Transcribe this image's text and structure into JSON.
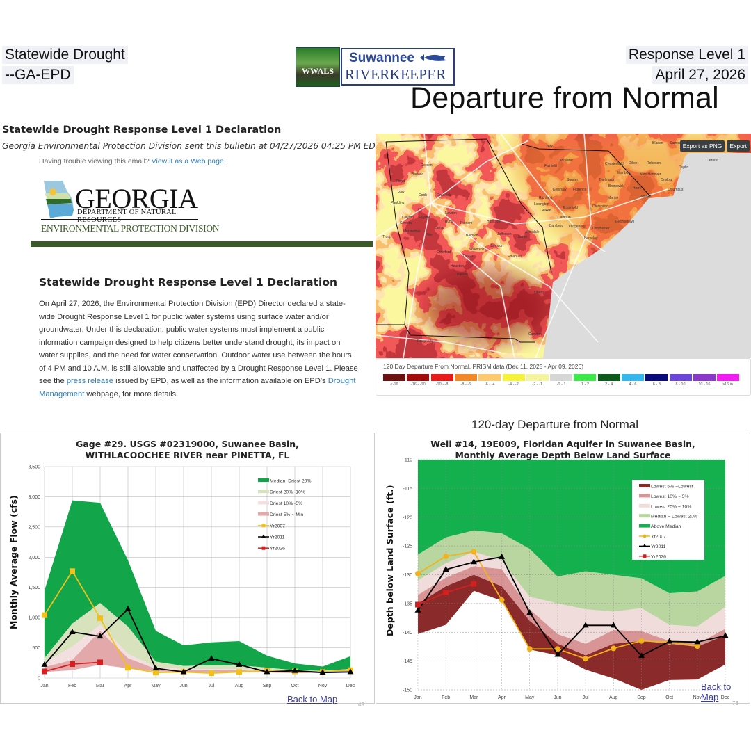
{
  "header": {
    "left_line1": "Statewide Drought",
    "left_line2": "--GA-EPD",
    "right_line1": "Response Level 1",
    "right_line2": "April 27, 2026",
    "big_title": "Departure from Normal",
    "logo_wwals": "WWALS",
    "logo_riverkeeper_1": "Suwannee",
    "logo_riverkeeper_2": "RIVERKEEPER"
  },
  "email": {
    "title": "Statewide Drought Response Level 1 Declaration",
    "subtitle": "Georgia Environmental Protection Division sent this bulletin at 04/27/2026 04:25 PM EDT",
    "trouble_text": "Having trouble viewing this email?",
    "trouble_link": "View it as a Web page.",
    "logo": {
      "word": "GEORGIA",
      "dnr": "DEPARTMENT OF NATURAL RESOURCES",
      "epd": "ENVIRONMENTAL PROTECTION DIVISION"
    },
    "heading": "Statewide Drought Response Level 1 Declaration",
    "body_1": "On April 27, 2026, the Environmental Protection Division (EPD) Director declared a state-wide Drought Response Level 1 for public water systems using surface water and/or groundwater.  Under this declaration, public water systems must implement a public information campaign designed to help citizens better understand drought, its impact on water supplies, and the need for water conservation.  Outdoor water use between the hours of 4 PM and 10 A.M. is still allowable and unaffected by a Drought Response Level 1. Please see the ",
    "link_press": "press release",
    "body_2": " issued by EPD, as well as the information available on EPD's ",
    "link_drought": "Drought Management",
    "body_3": " webpage, for more details.",
    "accent_color": "#3a5a28"
  },
  "map": {
    "export_png": "Export as PNG",
    "export": "Export",
    "legend_caption": "120 Day Departure From Normal, PRISM data (Dec 11, 2025 - Apr 09, 2026)",
    "legend": [
      {
        "label": "<-16",
        "color": "#6d1010"
      },
      {
        "label": "-16 - -10",
        "color": "#a10c0c"
      },
      {
        "label": "-10 - -8",
        "color": "#e81b1b"
      },
      {
        "label": "-8 - -6",
        "color": "#f0882a"
      },
      {
        "label": "-6 - -4",
        "color": "#fcc870"
      },
      {
        "label": "-4 - -2",
        "color": "#f5f23c"
      },
      {
        "label": "-2 - -1",
        "color": "#f4f3a0"
      },
      {
        "label": "-1 - 1",
        "color": "#d7d7d7"
      },
      {
        "label": "1 - 2",
        "color": "#3ee84a"
      },
      {
        "label": "2 - 4",
        "color": "#0d5a1c"
      },
      {
        "label": "4 - 6",
        "color": "#36b6ea"
      },
      {
        "label": "6 - 8",
        "color": "#0a0a78"
      },
      {
        "label": "8 - 10",
        "color": "#6a45d6"
      },
      {
        "label": "10 - 16",
        "color": "#8a38c8"
      },
      {
        "label": ">16 in.",
        "color": "#f01cf0"
      }
    ],
    "places": [
      "Gordon",
      "Bartow",
      "Floyd",
      "Polk",
      "Cobb",
      "Gwinnett",
      "Paulding",
      "Clayton",
      "Coweta",
      "Fayette",
      "Newton",
      "Troup",
      "Meriwether",
      "Butts",
      "Putnam",
      "Lamar",
      "Pike",
      "Baldwin",
      "Hancock",
      "Jefferson",
      "Burke",
      "Johnson",
      "Crawford",
      "Twiggs",
      "Wilkinson",
      "Houston",
      "Pulaski",
      "Emanuel",
      "Liberty",
      "Camden",
      "Dougherty",
      "York",
      "Lancaster",
      "Fairfield",
      "Chesterfield",
      "Marlboro",
      "Dillon",
      "Robeson",
      "Bladen",
      "Sampson",
      "Duplin",
      "Onslow",
      "Pender",
      "Columbus",
      "New Hanover",
      "Brunswick",
      "Horry",
      "Marion",
      "Darlington",
      "Florence",
      "Sumter",
      "Kershaw",
      "Richland",
      "Lexington",
      "Aiken",
      "Edgefield",
      "Calhoun",
      "Orangeburg",
      "Bamberg",
      "Dorchester",
      "Berkeley",
      "Georgetown",
      "Clarendon",
      "Allendale",
      "Carteret"
    ]
  },
  "section_title": "120-day Departure from Normal",
  "chart_data": [
    {
      "type": "area",
      "title_line1": "Gage #29. USGS #02319000, Suwanee Basin,",
      "title_line2": "WITHLACOOCHEE RIVER near PINETTA, FL",
      "xlabel": "",
      "ylabel": "Monthly Average Flow (cfs)",
      "categories": [
        "Jan",
        "Feb",
        "Mar",
        "Apr",
        "May",
        "Jun",
        "Jul",
        "Aug",
        "Sep",
        "Oct",
        "Nov",
        "Dec"
      ],
      "ylim": [
        0,
        3500
      ],
      "yticks": [
        0,
        500,
        1000,
        1500,
        2000,
        2500,
        3000,
        3500
      ],
      "ytick_labels": [
        "0",
        "500",
        "1,000",
        "1,500",
        "2,000",
        "2,500",
        "3,000",
        "3,500"
      ],
      "grid": "solid",
      "legend_position": "top-right",
      "bands": [
        {
          "name": "Median~Driest 20%",
          "color": "#12a54a",
          "upper": [
            1450,
            2940,
            2900,
            1950,
            780,
            540,
            590,
            610,
            370,
            240,
            190,
            360
          ],
          "lower": [
            330,
            900,
            1240,
            850,
            270,
            200,
            210,
            210,
            170,
            130,
            120,
            150
          ]
        },
        {
          "name": "Driest 20%~10%",
          "color": "#d8e2bd",
          "upper": [
            330,
            900,
            1240,
            850,
            270,
            200,
            210,
            210,
            170,
            130,
            120,
            150
          ],
          "lower": [
            250,
            520,
            880,
            400,
            180,
            150,
            150,
            150,
            130,
            110,
            100,
            120
          ]
        },
        {
          "name": "Driest 10%~5%",
          "color": "#f3dfdf",
          "upper": [
            250,
            520,
            880,
            400,
            180,
            150,
            150,
            150,
            130,
            110,
            100,
            120
          ],
          "lower": [
            180,
            300,
            780,
            330,
            150,
            130,
            130,
            130,
            110,
            100,
            90,
            110
          ]
        },
        {
          "name": "Driest 5% ~ Min",
          "color": "#e3a8aa",
          "upper": [
            180,
            300,
            780,
            330,
            150,
            130,
            130,
            130,
            110,
            100,
            90,
            110
          ],
          "lower": [
            100,
            130,
            220,
            160,
            110,
            100,
            100,
            100,
            90,
            80,
            80,
            90
          ]
        }
      ],
      "series": [
        {
          "name": "Yr2007",
          "color": "#f2c01c",
          "marker": "square",
          "values": [
            1040,
            1770,
            990,
            170,
            90,
            100,
            80,
            100,
            120,
            110,
            100,
            130
          ]
        },
        {
          "name": "Yr2011",
          "color": "#000000",
          "marker": "triangle",
          "values": [
            220,
            760,
            690,
            1140,
            160,
            100,
            320,
            220,
            100,
            120,
            90,
            100
          ]
        },
        {
          "name": "Yr2026",
          "color": "#d42020",
          "marker": "square",
          "values": [
            110,
            230,
            260,
            null,
            null,
            null,
            null,
            null,
            null,
            null,
            null,
            null
          ]
        }
      ],
      "back_link": "Back to Map",
      "page_number": "49"
    },
    {
      "type": "area",
      "title_line1": "Well #14, 19E009, Floridan Aquifer in Suwanee Basin,",
      "title_line2": "Monthly Average Depth Below  Land Surface",
      "xlabel": "",
      "ylabel": "Depth below Land Surface (ft.)",
      "categories": [
        "Jan",
        "Feb",
        "Mar",
        "Apr",
        "May",
        "Jun",
        "Jul",
        "Aug",
        "Sep",
        "Oct",
        "Nov",
        "Dec"
      ],
      "ylim": [
        -150,
        -110
      ],
      "yticks": [
        -110,
        -115,
        -120,
        -125,
        -130,
        -135,
        -140,
        -145,
        -150
      ],
      "ytick_labels": [
        "-110",
        "-115",
        "-120",
        "-125",
        "-130",
        "-135",
        "-140",
        "-145",
        "-150"
      ],
      "grid": "dotted",
      "legend_position": "top-right",
      "bands": [
        {
          "name": "Lowest 5% ~Lowest",
          "color": "#8b2a2a",
          "upper": [
            -135,
            -132,
            -130,
            -132,
            -138,
            -142,
            -144,
            -142,
            -141.5,
            -142,
            -142.5,
            -140.5
          ],
          "lower": [
            -140.3,
            -138.7,
            -132.8,
            -134.5,
            -143,
            -144,
            -146.5,
            -148,
            -150,
            -148.3,
            -148.2,
            -145.6
          ]
        },
        {
          "name": "Lowest 10% ~ 5%",
          "color": "#d99595",
          "upper": [
            -133.5,
            -130.5,
            -128.5,
            -129,
            -136,
            -140.3,
            -142,
            -139.6,
            -139.8,
            -141.5,
            -142,
            -139.4
          ],
          "lower": [
            -135,
            -132,
            -130,
            -132,
            -138,
            -142,
            -144,
            -142,
            -141.5,
            -142,
            -142.5,
            -140.5
          ]
        },
        {
          "name": "Lowest 20% ~ 10%",
          "color": "#f1dcdc",
          "upper": [
            -131,
            -128,
            -126,
            -127.5,
            -133.8,
            -135,
            -136,
            -136.4,
            -135.8,
            -138.7,
            -139,
            -135.6
          ],
          "lower": [
            -133.5,
            -130.5,
            -128.5,
            -129,
            -136,
            -140.3,
            -142,
            -139.6,
            -139.8,
            -141.5,
            -142,
            -139.4
          ]
        },
        {
          "name": "Median ~ Lowest 20%",
          "color": "#b9d5a0",
          "upper": [
            -126.5,
            -123.5,
            -122.3,
            -122.8,
            -125.5,
            -130.3,
            -129.4,
            -130,
            -130.6,
            -133.2,
            -132.9,
            -130.2
          ],
          "lower": [
            -131,
            -128,
            -126,
            -127.5,
            -133.8,
            -135,
            -136,
            -136.4,
            -135.8,
            -138.7,
            -139,
            -135.6
          ]
        },
        {
          "name": "Above Median",
          "color": "#14b04d",
          "upper": [
            -110,
            -110,
            -110,
            -110,
            -110,
            -110,
            -110,
            -110,
            -110,
            -110,
            -110,
            -110
          ],
          "lower": [
            -126.5,
            -123.5,
            -122.3,
            -122.8,
            -125.5,
            -130.3,
            -129.4,
            -130,
            -130.6,
            -133.2,
            -132.9,
            -130.2
          ]
        }
      ],
      "series": [
        {
          "name": "Yr2007",
          "color": "#f2b21c",
          "marker": "circle",
          "values": [
            -129.8,
            -126.8,
            -126,
            -134.4,
            -142.9,
            -142.9,
            -144.6,
            -142.8,
            -141.5,
            -141.7,
            -142.4,
            null
          ]
        },
        {
          "name": "Yr2011",
          "color": "#000000",
          "marker": "triangle",
          "values": [
            -136.2,
            -129.1,
            -127.8,
            -126.9,
            -136.6,
            -143.9,
            -138.8,
            -138.8,
            -144.1,
            -141.6,
            -141.7,
            -140.6
          ]
        },
        {
          "name": "Yr2026",
          "color": "#d42020",
          "marker": "square",
          "values": [
            -135.2,
            -133.1,
            -131.6,
            null,
            null,
            null,
            null,
            null,
            null,
            null,
            null,
            null
          ]
        }
      ],
      "back_link": "Back to Map",
      "page_number": "73"
    }
  ]
}
